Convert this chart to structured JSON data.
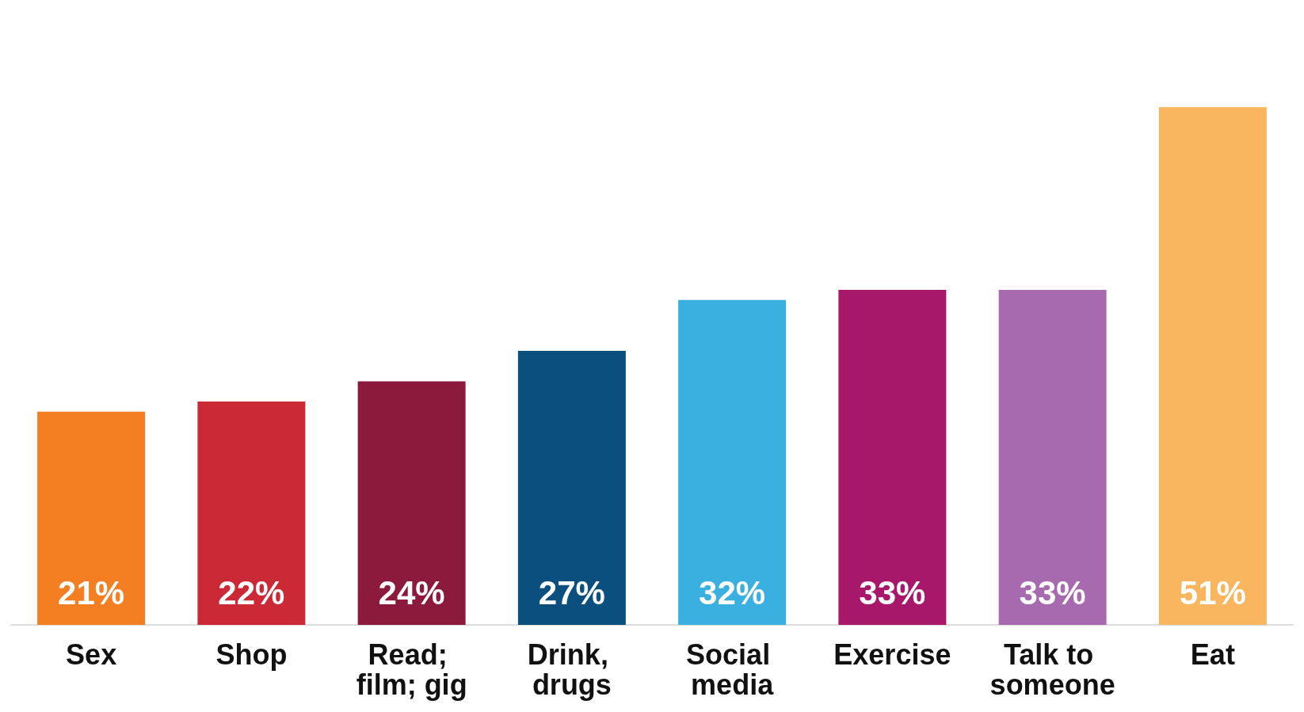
{
  "chart_data": {
    "type": "bar",
    "categories": [
      "Sex",
      "Shop",
      "Read; film; gig",
      "Drink, drugs",
      "Social media",
      "Exercise",
      "Talk to someone",
      "Eat"
    ],
    "values": [
      21,
      22,
      24,
      27,
      32,
      33,
      33,
      51
    ],
    "colors": [
      "#f37f22",
      "#cc2936",
      "#8c1a3c",
      "#0a4f7e",
      "#3ab0e0",
      "#a8186a",
      "#a86aae",
      "#f9b65e"
    ],
    "value_labels": [
      "21%",
      "22%",
      "24%",
      "27%",
      "32%",
      "33%",
      "33%",
      "51%"
    ]
  }
}
